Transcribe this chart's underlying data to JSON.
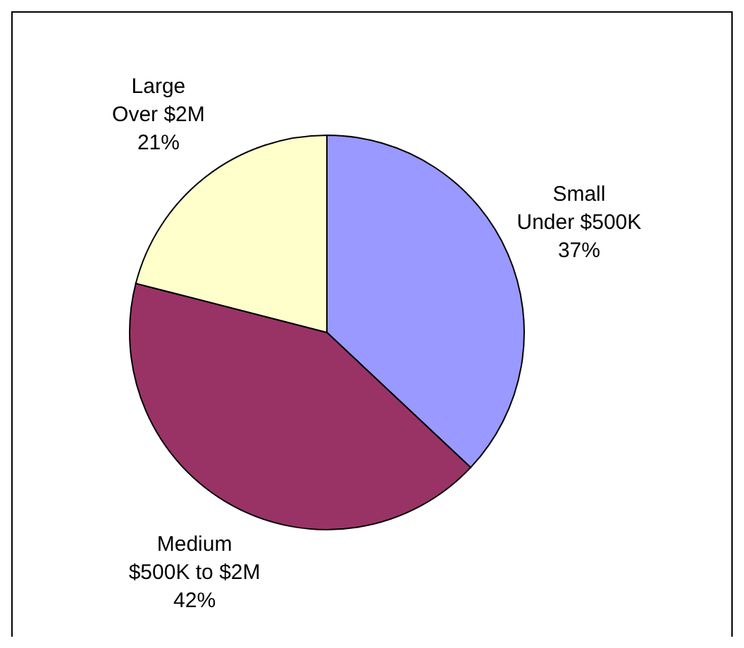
{
  "chart_data": {
    "type": "pie",
    "categories": [
      "Small\nUnder $500K",
      "Medium\n$500K to $2M",
      "Large\nOver $2M"
    ],
    "values": [
      37,
      42,
      21
    ],
    "value_labels": [
      "37%",
      "42%",
      "21%"
    ],
    "colors": [
      "#9999ff",
      "#993366",
      "#ffffcc"
    ]
  }
}
